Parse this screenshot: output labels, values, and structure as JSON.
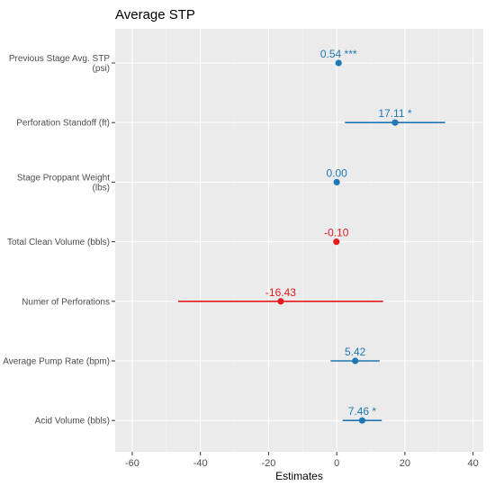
{
  "chart_data": {
    "type": "coefficient-plot",
    "title": "Average STP",
    "xlabel": "Estimates",
    "ylabel": "",
    "xlim": [
      -65,
      43
    ],
    "x_ticks": [
      -60,
      -40,
      -20,
      0,
      20,
      40
    ],
    "x_tick_labels": [
      "-60",
      "-40",
      "-20",
      "0",
      "20",
      "40"
    ],
    "grid": true,
    "positive_color": "#1f78b4",
    "negative_color": "#e41a1c",
    "panel_background": "#ebebeb",
    "terms": [
      {
        "label_lines": [
          "Previous Stage Avg. STP",
          "(psi)"
        ],
        "estimate": 0.54,
        "ci_low": 0.4,
        "ci_high": 0.7,
        "label": "0.54 ***"
      },
      {
        "label_lines": [
          "Perforation Standoff (ft)"
        ],
        "estimate": 17.11,
        "ci_low": 2.4,
        "ci_high": 31.8,
        "label": "17.11 *"
      },
      {
        "label_lines": [
          "Stage Proppant Weight",
          "(lbs)"
        ],
        "estimate": 0.0,
        "ci_low": -0.01,
        "ci_high": 0.01,
        "label": "0.00"
      },
      {
        "label_lines": [
          "Total Clean Volume (bbls)"
        ],
        "estimate": -0.1,
        "ci_low": -0.3,
        "ci_high": 0.1,
        "label": "-0.10"
      },
      {
        "label_lines": [
          "Numer of Perforations"
        ],
        "estimate": -16.43,
        "ci_low": -46.5,
        "ci_high": 13.6,
        "label": "-16.43"
      },
      {
        "label_lines": [
          "Average Pump Rate (bpm)"
        ],
        "estimate": 5.42,
        "ci_low": -1.8,
        "ci_high": 12.6,
        "label": "5.42"
      },
      {
        "label_lines": [
          "Acid Volume (bbls)"
        ],
        "estimate": 7.46,
        "ci_low": 1.7,
        "ci_high": 13.2,
        "label": "7.46 *"
      }
    ]
  }
}
